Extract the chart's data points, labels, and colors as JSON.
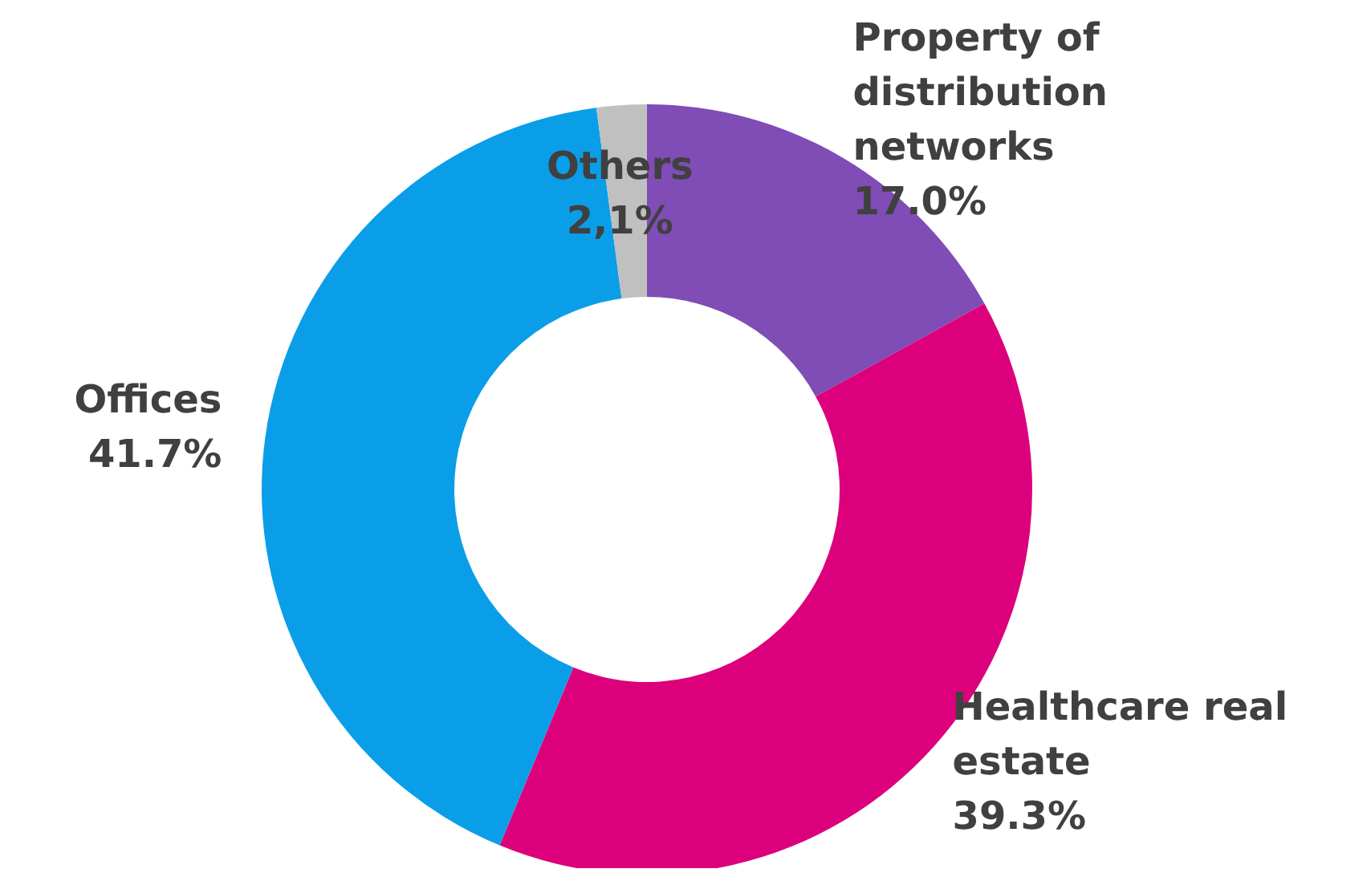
{
  "chart_data": {
    "type": "donut",
    "categories": [
      "Property of distribution networks",
      "Healthcare real estate",
      "Offices",
      "Others"
    ],
    "values": [
      17.0,
      39.3,
      41.7,
      2.1
    ],
    "colors": [
      "#7f4db5",
      "#dc007c",
      "#0a9ee8",
      "#c0c0c0"
    ],
    "value_labels": [
      "17.0%",
      "39.3%",
      "41.7%",
      "2,1%"
    ]
  }
}
